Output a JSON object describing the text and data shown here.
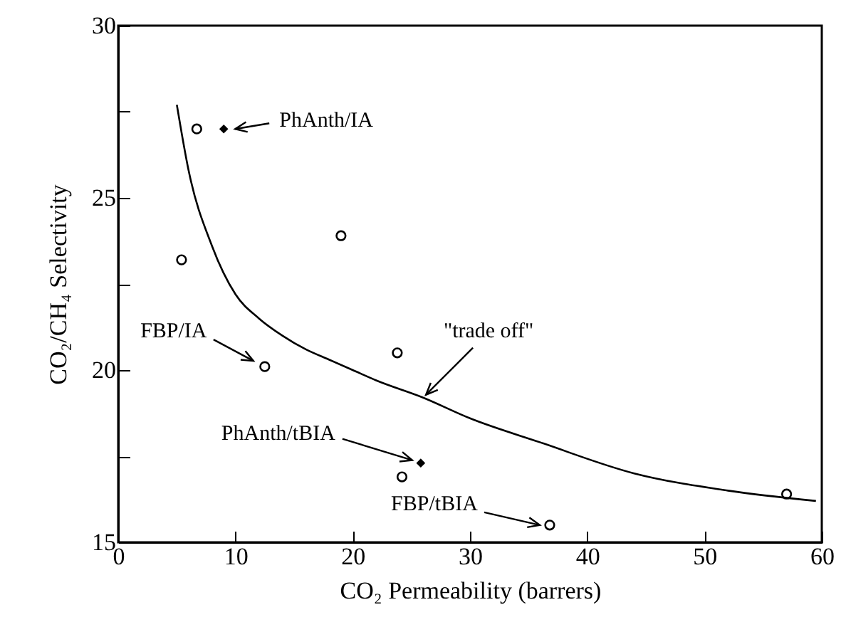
{
  "chart_data": {
    "type": "scatter",
    "xlabel": "CO₂ Permeability (barrers)",
    "ylabel": "CO₂/CH₄ Selectivity",
    "xlim": [
      0,
      60
    ],
    "xticks": [
      0,
      10,
      20,
      30,
      40,
      50,
      60
    ],
    "ylim": [
      15,
      30
    ],
    "yticks": [
      15,
      {
        "value": 17.5,
        "label": null
      },
      20,
      {
        "value": 22.5,
        "label": null
      },
      25,
      {
        "value": 27.5,
        "label": null
      },
      30
    ],
    "series": [
      {
        "type": "line",
        "color": "#000000",
        "x": [
          5,
          6,
          8,
          10,
          12,
          14,
          16,
          18,
          20,
          22,
          26,
          30,
          36,
          44,
          52,
          59.5
        ],
        "values": [
          27.7,
          25.8,
          23.6,
          22.2,
          21.5,
          21.0,
          20.6,
          20.3,
          20.0,
          19.7,
          19.2,
          18.6,
          17.9,
          17.0,
          16.5,
          16.2
        ]
      },
      {
        "marker": "circle",
        "color": "#000000",
        "x": [
          6.7,
          5.4,
          19.0,
          12.5,
          23.8,
          24.2,
          36.8,
          57.0
        ],
        "values": [
          27.0,
          23.2,
          23.9,
          20.1,
          20.5,
          16.9,
          15.5,
          16.4
        ]
      },
      {
        "marker": "diamond",
        "color": "#000000",
        "x": [
          9.0,
          25.8
        ],
        "values": [
          27.0,
          17.3
        ]
      }
    ],
    "annotations": [
      {
        "text": "PhAnth/IA",
        "x": 9.0,
        "y": 27.0
      },
      {
        "text": "FBP/IA",
        "x": 12.5,
        "y": 20.1
      },
      {
        "text": "PhAnth/tBIA",
        "x": 25.8,
        "y": 17.3
      },
      {
        "text": "FBP/tBIA",
        "x": 36.8,
        "y": 15.5
      },
      {
        "text": "\"trade off\"",
        "x": 26,
        "y": 19.2
      }
    ]
  }
}
